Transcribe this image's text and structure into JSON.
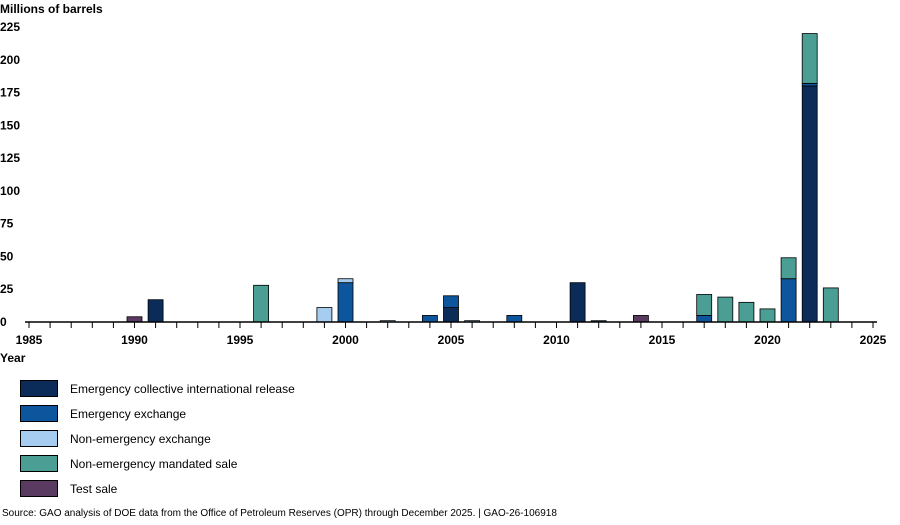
{
  "chart_data": {
    "type": "bar",
    "stacked": true,
    "ylabel": "Millions of barrels",
    "xlabel": "Year",
    "ylim": [
      0,
      225
    ],
    "yticks": [
      0,
      25,
      50,
      75,
      100,
      125,
      150,
      175,
      200,
      225
    ],
    "xlim": [
      1985,
      2025
    ],
    "xticks": [
      1985,
      1990,
      1995,
      2000,
      2005,
      2010,
      2015,
      2020,
      2025
    ],
    "colors": {
      "Emergency collective international release": "#0b2c58",
      "Emergency exchange": "#0d569e",
      "Non-emergency exchange": "#a6cdf0",
      "Non-emergency mandated sale": "#4a9e94",
      "Test sale": "#5b3a61"
    },
    "legend": [
      "Emergency collective international release",
      "Emergency exchange",
      "Non-emergency exchange",
      "Non-emergency mandated sale",
      "Test sale"
    ],
    "bars": [
      {
        "year": 1990,
        "segments": [
          {
            "series": "Test sale",
            "value": 4
          }
        ]
      },
      {
        "year": 1991,
        "segments": [
          {
            "series": "Emergency collective international release",
            "value": 17
          }
        ]
      },
      {
        "year": 1996,
        "segments": [
          {
            "series": "Non-emergency mandated sale",
            "value": 28
          }
        ]
      },
      {
        "year": 1999,
        "segments": [
          {
            "series": "Non-emergency exchange",
            "value": 11
          }
        ]
      },
      {
        "year": 2000,
        "segments": [
          {
            "series": "Emergency exchange",
            "value": 30
          },
          {
            "series": "Non-emergency exchange",
            "value": 3
          }
        ]
      },
      {
        "year": 2002,
        "segments": [
          {
            "series": "Non-emergency exchange",
            "value": 1
          }
        ]
      },
      {
        "year": 2004,
        "segments": [
          {
            "series": "Emergency exchange",
            "value": 5
          }
        ]
      },
      {
        "year": 2005,
        "segments": [
          {
            "series": "Emergency collective international release",
            "value": 11
          },
          {
            "series": "Emergency exchange",
            "value": 9
          }
        ]
      },
      {
        "year": 2006,
        "segments": [
          {
            "series": "Non-emergency exchange",
            "value": 1
          }
        ]
      },
      {
        "year": 2008,
        "segments": [
          {
            "series": "Emergency exchange",
            "value": 5
          }
        ]
      },
      {
        "year": 2011,
        "segments": [
          {
            "series": "Emergency collective international release",
            "value": 30
          }
        ]
      },
      {
        "year": 2012,
        "segments": [
          {
            "series": "Emergency exchange",
            "value": 1
          }
        ]
      },
      {
        "year": 2014,
        "segments": [
          {
            "series": "Test sale",
            "value": 5
          }
        ]
      },
      {
        "year": 2017,
        "segments": [
          {
            "series": "Emergency exchange",
            "value": 5
          },
          {
            "series": "Non-emergency mandated sale",
            "value": 16
          }
        ]
      },
      {
        "year": 2018,
        "segments": [
          {
            "series": "Non-emergency mandated sale",
            "value": 19
          }
        ]
      },
      {
        "year": 2019,
        "segments": [
          {
            "series": "Non-emergency mandated sale",
            "value": 15
          }
        ]
      },
      {
        "year": 2020,
        "segments": [
          {
            "series": "Non-emergency mandated sale",
            "value": 10
          }
        ]
      },
      {
        "year": 2021,
        "segments": [
          {
            "series": "Emergency exchange",
            "value": 33
          },
          {
            "series": "Non-emergency mandated sale",
            "value": 16
          }
        ]
      },
      {
        "year": 2022,
        "segments": [
          {
            "series": "Emergency collective international release",
            "value": 180
          },
          {
            "series": "Emergency exchange",
            "value": 2
          },
          {
            "series": "Non-emergency mandated sale",
            "value": 38
          }
        ]
      },
      {
        "year": 2023,
        "segments": [
          {
            "series": "Non-emergency mandated sale",
            "value": 26
          }
        ]
      }
    ]
  },
  "source_note": "Source: GAO analysis of DOE data from the Office of Petroleum Reserves (OPR) through December 2025.  |  GAO-26-106918"
}
